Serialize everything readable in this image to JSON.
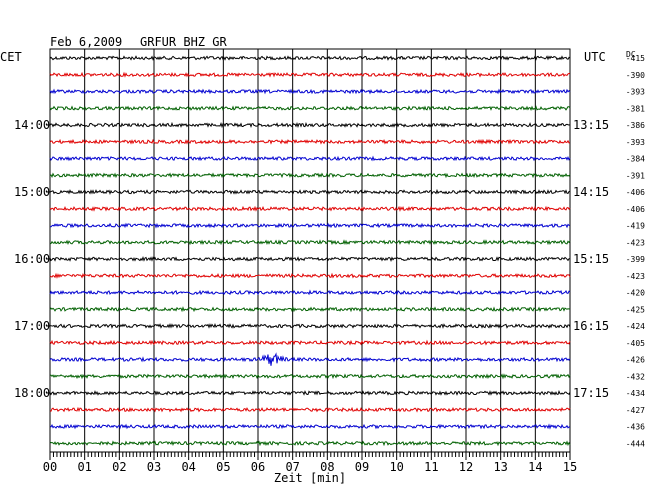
{
  "header": {
    "date": "Feb 6,2009",
    "station": "GRFUR BHZ GR",
    "left_label": "CET",
    "right_label": "UTC",
    "dc_label": "DC"
  },
  "colors": [
    "#000000",
    "#e00000",
    "#0000d0",
    "#006000"
  ],
  "chart_data": {
    "type": "line",
    "title": "Feb 6,2009  GRFUR BHZ GR",
    "xlabel": "Zeit [min]",
    "x_ticks": [
      "00",
      "01",
      "02",
      "03",
      "04",
      "05",
      "06",
      "07",
      "08",
      "09",
      "10",
      "11",
      "12",
      "13",
      "14",
      "15"
    ],
    "xlim": [
      0,
      15
    ],
    "rows": 24,
    "cet_hour_labels": [
      {
        "row": 4,
        "label": "14:00"
      },
      {
        "row": 8,
        "label": "15:00"
      },
      {
        "row": 12,
        "label": "16:00"
      },
      {
        "row": 16,
        "label": "17:00"
      },
      {
        "row": 20,
        "label": "18:00"
      }
    ],
    "utc_hour_labels": [
      {
        "row": 4,
        "label": "13:15"
      },
      {
        "row": 8,
        "label": "14:15"
      },
      {
        "row": 12,
        "label": "15:15"
      },
      {
        "row": 16,
        "label": "16:15"
      },
      {
        "row": 20,
        "label": "17:15"
      }
    ],
    "dc_values": [
      "-415",
      "-390",
      "-393",
      "-381",
      "-386",
      "-393",
      "-384",
      "-391",
      "-406",
      "-406",
      "-419",
      "-423",
      "-399",
      "-423",
      "-420",
      "-425",
      "-424",
      "-405",
      "-426",
      "-432",
      "-434",
      "-427",
      "-436",
      "-444"
    ],
    "events": [
      {
        "row": 18,
        "minute": 6.4,
        "label": ""
      }
    ],
    "grid": true
  }
}
